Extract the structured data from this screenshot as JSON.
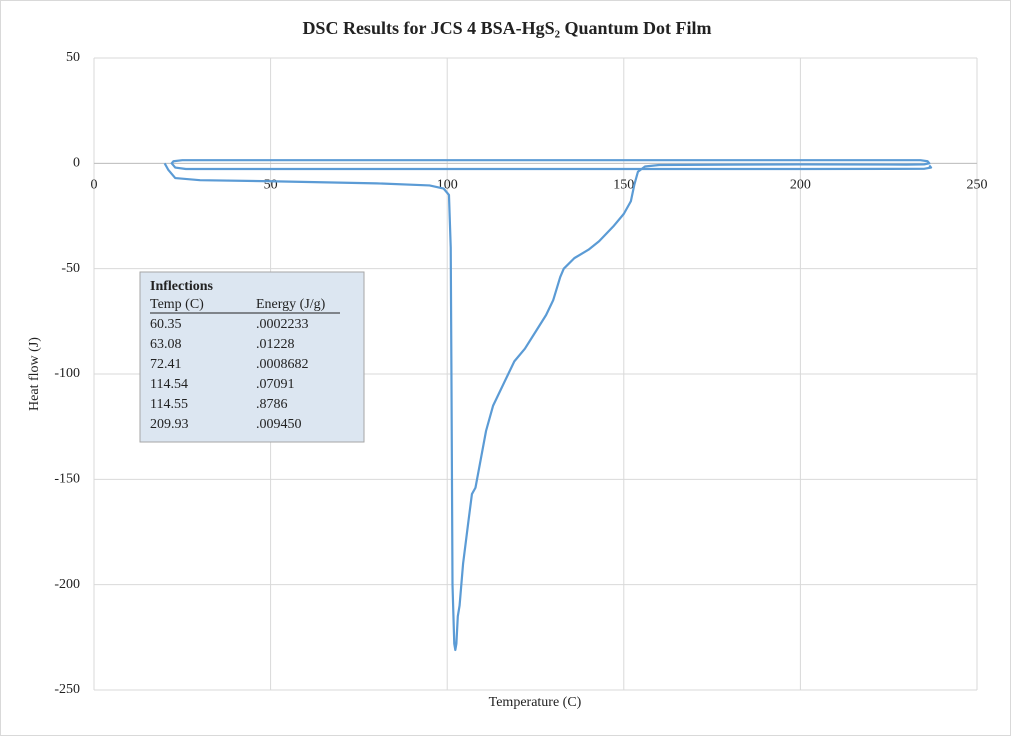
{
  "chart_data": {
    "type": "line",
    "title": "DSC Results for JCS 4 BSA-HgS₂ Quantum Dot Film",
    "x_label": "Temperature (C)",
    "y_label": "Heat flow (J)",
    "color": "#5b9bd5",
    "grid": true,
    "xlim": [
      0,
      250
    ],
    "xticks": [
      0,
      50,
      100,
      150,
      200,
      250
    ],
    "ylim": [
      -250,
      50
    ],
    "yticks": [
      50,
      0,
      -50,
      -100,
      -150,
      -200,
      -250
    ],
    "x": [
      20,
      21,
      23,
      30,
      50,
      80,
      95,
      99,
      100.5,
      101,
      101.2,
      101.5,
      102,
      102.3,
      102.6,
      103,
      103.5,
      104.5,
      106,
      107,
      108,
      109,
      111,
      113,
      115,
      117,
      119,
      122,
      125,
      128,
      130,
      132,
      133,
      136,
      140,
      143,
      147,
      150,
      152,
      153,
      154,
      156,
      160,
      180,
      200,
      230,
      235,
      236.5,
      236,
      234,
      200,
      150,
      100,
      50,
      25,
      22.5,
      22,
      23,
      26,
      50,
      100,
      150,
      200,
      235,
      237,
      236.5
    ],
    "values": [
      0,
      -3,
      -7,
      -8,
      -8.5,
      -9.5,
      -10.5,
      -12,
      -15,
      -40,
      -100,
      -200,
      -228,
      -231,
      -228,
      -215,
      -210,
      -190,
      -170,
      -157,
      -154,
      -145,
      -127,
      -115,
      -108,
      -101,
      -94,
      -88,
      -80,
      -72,
      -65,
      -54,
      -50,
      -45,
      -41,
      -37,
      -30,
      -24,
      -18,
      -10,
      -4,
      -1.5,
      -0.8,
      -0.6,
      -0.5,
      -0.6,
      -0.5,
      0,
      1,
      1.5,
      1.5,
      1.5,
      1.5,
      1.5,
      1.5,
      1,
      0,
      -2,
      -2.7,
      -2.7,
      -2.7,
      -2.7,
      -2.7,
      -2.6,
      -2,
      -1
    ],
    "inflections": {
      "title": "Inflections",
      "columns": [
        "Temp (C)",
        "Energy (J/g)"
      ],
      "rows": [
        [
          "60.35",
          ".0002233"
        ],
        [
          "63.08",
          ".01228"
        ],
        [
          "72.41",
          ".0008682"
        ],
        [
          "114.54",
          ".07091"
        ],
        [
          "114.55",
          ".8786"
        ],
        [
          "209.93",
          ".009450"
        ]
      ]
    }
  }
}
